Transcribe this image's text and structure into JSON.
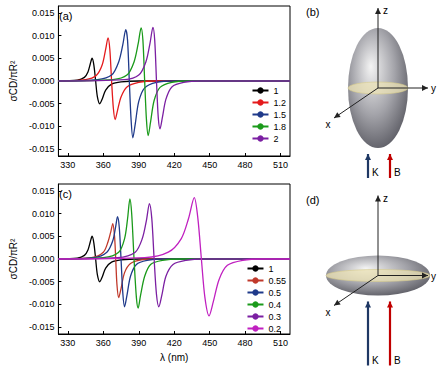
{
  "chart_data": [
    {
      "type": "line",
      "title": "(a)",
      "ylabel": "σCD/πR²",
      "xlim": [
        322,
        518
      ],
      "xticks": [
        330,
        360,
        390,
        420,
        450,
        480,
        510
      ],
      "ylim": [
        -0.0165,
        0.0165
      ],
      "yticks": [
        -0.015,
        {
          "value": -0.01,
          "label": "-0.010"
        },
        -0.005,
        {
          "value": 0,
          "label": "0.000"
        },
        0.005,
        {
          "value": 0.01,
          "label": "0.010"
        },
        0.015
      ],
      "grid": false,
      "legend": "lower right",
      "series": [
        {
          "name": "1",
          "color": "#000000",
          "x": [
            322,
            338,
            344,
            347,
            349,
            350.5,
            352,
            353.5,
            355,
            357,
            359,
            362,
            367,
            375,
            390,
            518
          ],
          "values": [
            0,
            0.0002,
            0.0008,
            0.002,
            0.0038,
            0.005,
            0.0035,
            0,
            -0.0035,
            -0.005,
            -0.004,
            -0.002,
            -0.0007,
            -0.0002,
            0,
            0
          ]
        },
        {
          "name": "1.2",
          "color": "#e41a1c",
          "x": [
            322,
            345,
            354,
            359,
            362,
            364,
            365.5,
            367,
            368.5,
            370,
            372,
            375,
            380,
            390,
            405,
            518
          ],
          "values": [
            0,
            0.0003,
            0.0012,
            0.0035,
            0.007,
            0.0095,
            0.007,
            0,
            -0.006,
            -0.0085,
            -0.0065,
            -0.0035,
            -0.0013,
            -0.0003,
            0,
            0
          ]
        },
        {
          "name": "1.5",
          "color": "#1f3a8a",
          "x": [
            322,
            355,
            367,
            373,
            376.5,
            379,
            380.5,
            382,
            383.5,
            385,
            387,
            390,
            395,
            405,
            420,
            518
          ],
          "values": [
            0,
            0.0003,
            0.0013,
            0.0042,
            0.008,
            0.0113,
            0.009,
            0,
            -0.0085,
            -0.0125,
            -0.0095,
            -0.0045,
            -0.0015,
            -0.0003,
            0,
            0
          ]
        },
        {
          "name": "1.8",
          "color": "#1a9a1a",
          "x": [
            322,
            368,
            380,
            386,
            389.5,
            392,
            393.5,
            395,
            396.5,
            398,
            400,
            403,
            408,
            418,
            433,
            518
          ],
          "values": [
            0,
            0.0003,
            0.0013,
            0.0042,
            0.0082,
            0.0117,
            0.009,
            0,
            -0.0085,
            -0.012,
            -0.009,
            -0.0043,
            -0.0014,
            -0.0003,
            0,
            0
          ]
        },
        {
          "name": "2",
          "color": "#7b1fa2",
          "x": [
            322,
            378,
            390,
            396,
            399.5,
            402,
            403.5,
            405,
            406.5,
            408,
            410,
            413,
            418,
            428,
            443,
            518
          ],
          "values": [
            0,
            0.0003,
            0.0013,
            0.0042,
            0.0083,
            0.0118,
            0.009,
            0,
            -0.008,
            -0.0105,
            -0.008,
            -0.004,
            -0.0013,
            -0.0003,
            0,
            0
          ]
        }
      ]
    },
    {
      "type": "line",
      "title": "(c)",
      "ylabel": "σCD/πR²",
      "xlabel": "λ (nm)",
      "xlim": [
        322,
        518
      ],
      "xticks": [
        330,
        360,
        390,
        420,
        450,
        480,
        510
      ],
      "ylim": [
        -0.0165,
        0.0165
      ],
      "yticks": [
        -0.015,
        {
          "value": -0.01,
          "label": "-0.010"
        },
        -0.005,
        {
          "value": 0,
          "label": "0.000"
        },
        0.005,
        {
          "value": 0.01,
          "label": "0.010"
        },
        0.015
      ],
      "grid": false,
      "legend": "lower right",
      "series": [
        {
          "name": "1",
          "color": "#000000",
          "x": [
            322,
            338,
            344,
            347,
            349,
            350.5,
            352,
            353.5,
            355,
            357,
            359,
            362,
            367,
            375,
            390,
            518
          ],
          "values": [
            0,
            0.0002,
            0.0008,
            0.002,
            0.0038,
            0.005,
            0.0035,
            0,
            -0.0035,
            -0.005,
            -0.004,
            -0.002,
            -0.0007,
            -0.0002,
            0,
            0
          ]
        },
        {
          "name": "0.55",
          "color": "#c0392b",
          "x": [
            322,
            350,
            360,
            364,
            366.5,
            368,
            369.5,
            370.5,
            371.5,
            373,
            375,
            378,
            383,
            392,
            405,
            518
          ],
          "values": [
            0,
            0.0003,
            0.0015,
            0.0038,
            0.0062,
            0.0078,
            0.005,
            0,
            -0.0055,
            -0.0085,
            -0.0065,
            -0.003,
            -0.001,
            -0.0002,
            0,
            0
          ]
        },
        {
          "name": "0.5",
          "color": "#1f3a8a",
          "x": [
            322,
            352,
            363,
            368,
            370.5,
            372,
            373.5,
            375,
            376.5,
            378,
            380,
            383,
            388,
            397,
            410,
            518
          ],
          "values": [
            0,
            0.0003,
            0.0015,
            0.004,
            0.0072,
            0.0093,
            0.007,
            0,
            -0.0075,
            -0.0105,
            -0.008,
            -0.0038,
            -0.0012,
            -0.0003,
            0,
            0
          ]
        },
        {
          "name": "0.4",
          "color": "#1a9a1a",
          "x": [
            322,
            360,
            373,
            378,
            380.5,
            382.5,
            384,
            386,
            388,
            389.5,
            391.5,
            395,
            400,
            410,
            425,
            518
          ],
          "values": [
            0,
            0.0003,
            0.0015,
            0.0045,
            0.0088,
            0.0132,
            0.01,
            0,
            -0.0085,
            -0.0108,
            -0.008,
            -0.0038,
            -0.0012,
            -0.0003,
            0,
            0
          ]
        },
        {
          "name": "0.3",
          "color": "#7b1fa2",
          "x": [
            322,
            372,
            387,
            393,
            396.5,
            399,
            401,
            403,
            405,
            407,
            409.5,
            413,
            419,
            430,
            445,
            518
          ],
          "values": [
            0,
            0.0003,
            0.0015,
            0.0045,
            0.0085,
            0.0122,
            0.009,
            0,
            -0.0078,
            -0.0105,
            -0.008,
            -0.0038,
            -0.0012,
            -0.0003,
            0,
            0
          ]
        },
        {
          "name": "0.2",
          "color": "#c020c0",
          "x": [
            322,
            395,
            415,
            426,
            432,
            437,
            440,
            443,
            446,
            449.5,
            453,
            458,
            465,
            478,
            495,
            518
          ],
          "values": [
            0,
            0.0003,
            0.0015,
            0.0045,
            0.0088,
            0.0135,
            0.009,
            0,
            -0.0085,
            -0.0125,
            -0.0095,
            -0.0045,
            -0.0014,
            -0.0003,
            0,
            0
          ]
        }
      ]
    }
  ],
  "diagrams": [
    {
      "label": "(b)",
      "axes": [
        "z",
        "y",
        "x"
      ],
      "arrows": [
        {
          "label": "K",
          "color": "#1f3864"
        },
        {
          "label": "B",
          "color": "#c00000"
        }
      ]
    },
    {
      "label": "(d)",
      "axes": [
        "z",
        "y",
        "x"
      ],
      "arrows": [
        {
          "label": "K",
          "color": "#1f3864"
        },
        {
          "label": "B",
          "color": "#c00000"
        }
      ]
    }
  ]
}
